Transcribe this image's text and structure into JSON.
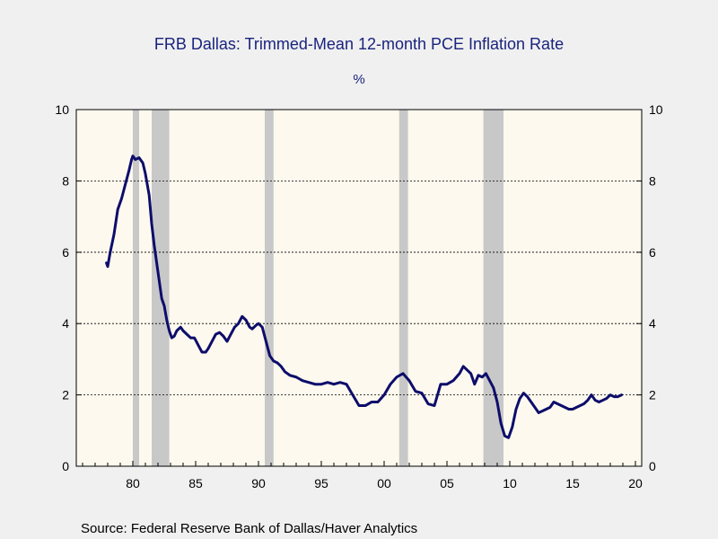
{
  "chart_data": {
    "type": "line",
    "title": "FRB Dallas: Trimmed-Mean 12-month PCE Inflation Rate",
    "subtitle": "%",
    "source": "Source:  Federal Reserve Bank of Dallas/Haver Analytics",
    "xlim": [
      1975.5,
      2020.5
    ],
    "ylim": [
      0,
      10
    ],
    "y_ticks": [
      0,
      2,
      4,
      6,
      8,
      10
    ],
    "x_ticks": [
      {
        "year": 1980,
        "label": "80"
      },
      {
        "year": 1985,
        "label": "85"
      },
      {
        "year": 1990,
        "label": "90"
      },
      {
        "year": 1995,
        "label": "95"
      },
      {
        "year": 2000,
        "label": "00"
      },
      {
        "year": 2005,
        "label": "05"
      },
      {
        "year": 2010,
        "label": "10"
      },
      {
        "year": 2015,
        "label": "15"
      },
      {
        "year": 2020,
        "label": "20"
      }
    ],
    "grid": {
      "horizontal_dashed_at": [
        2,
        4,
        6,
        8
      ]
    },
    "recessions": [
      {
        "start": 1980.0,
        "end": 1980.5
      },
      {
        "start": 1981.5,
        "end": 1982.9
      },
      {
        "start": 1990.5,
        "end": 1991.2
      },
      {
        "start": 2001.2,
        "end": 2001.9
      },
      {
        "start": 2007.9,
        "end": 2009.5
      }
    ],
    "colors": {
      "line": "#0d0d6b",
      "plot_background": "#fdf9ee",
      "recession_band": "#c8c8c8",
      "title": "#1a237e"
    },
    "series": [
      {
        "x": [
          1977.9,
          1978.0,
          1978.2,
          1978.5,
          1978.8,
          1979.1,
          1979.4,
          1979.7,
          1979.9,
          1980.0,
          1980.2,
          1980.5,
          1980.8,
          1981.0,
          1981.3,
          1981.5,
          1981.7,
          1981.9,
          1982.1,
          1982.3,
          1982.5,
          1982.7,
          1982.9,
          1983.1,
          1983.3,
          1983.5,
          1983.8,
          1984.0,
          1984.3,
          1984.6,
          1984.9,
          1985.2,
          1985.5,
          1985.8,
          1986.0,
          1986.3,
          1986.6,
          1986.9,
          1987.2,
          1987.5,
          1987.8,
          1988.1,
          1988.4,
          1988.7,
          1989.0,
          1989.3,
          1989.5,
          1989.8,
          1990.0,
          1990.3,
          1990.6,
          1990.9,
          1991.2,
          1991.5,
          1991.8,
          1992.1,
          1992.5,
          1993.0,
          1993.5,
          1994.0,
          1994.5,
          1995.0,
          1995.5,
          1996.0,
          1996.5,
          1997.0,
          1997.5,
          1998.0,
          1998.5,
          1999.0,
          1999.5,
          2000.0,
          2000.5,
          2001.0,
          2001.5,
          2002.0,
          2002.5,
          2003.0,
          2003.5,
          2004.0,
          2004.5,
          2005.0,
          2005.5,
          2006.0,
          2006.3,
          2006.6,
          2006.9,
          2007.2,
          2007.5,
          2007.8,
          2008.1,
          2008.4,
          2008.7,
          2009.0,
          2009.3,
          2009.6,
          2009.9,
          2010.2,
          2010.5,
          2010.8,
          2011.1,
          2011.4,
          2011.7,
          2012.0,
          2012.3,
          2012.6,
          2012.9,
          2013.2,
          2013.5,
          2013.8,
          2014.1,
          2014.4,
          2014.7,
          2015.0,
          2015.3,
          2015.6,
          2015.9,
          2016.2,
          2016.5,
          2016.8,
          2017.1,
          2017.4,
          2017.7,
          2018.0,
          2018.3,
          2018.6,
          2018.9
        ],
        "y": [
          5.7,
          5.6,
          6.0,
          6.5,
          7.2,
          7.5,
          7.9,
          8.3,
          8.6,
          8.7,
          8.6,
          8.65,
          8.5,
          8.2,
          7.6,
          6.8,
          6.2,
          5.7,
          5.2,
          4.7,
          4.5,
          4.1,
          3.8,
          3.6,
          3.65,
          3.8,
          3.9,
          3.8,
          3.7,
          3.6,
          3.6,
          3.4,
          3.2,
          3.2,
          3.3,
          3.5,
          3.7,
          3.75,
          3.65,
          3.5,
          3.7,
          3.9,
          4.0,
          4.2,
          4.1,
          3.9,
          3.85,
          3.95,
          4.0,
          3.9,
          3.5,
          3.1,
          2.95,
          2.9,
          2.8,
          2.65,
          2.55,
          2.5,
          2.4,
          2.35,
          2.3,
          2.3,
          2.35,
          2.3,
          2.35,
          2.3,
          2.0,
          1.7,
          1.7,
          1.8,
          1.8,
          2.0,
          2.3,
          2.5,
          2.6,
          2.4,
          2.1,
          2.05,
          1.75,
          1.7,
          2.3,
          2.3,
          2.4,
          2.6,
          2.8,
          2.7,
          2.6,
          2.3,
          2.55,
          2.5,
          2.6,
          2.4,
          2.2,
          1.8,
          1.2,
          0.85,
          0.8,
          1.1,
          1.6,
          1.9,
          2.05,
          1.95,
          1.8,
          1.65,
          1.5,
          1.55,
          1.6,
          1.65,
          1.8,
          1.75,
          1.7,
          1.65,
          1.6,
          1.6,
          1.65,
          1.7,
          1.75,
          1.85,
          2.0,
          1.85,
          1.8,
          1.85,
          1.9,
          2.0,
          1.95,
          1.95,
          2.0
        ]
      }
    ]
  }
}
